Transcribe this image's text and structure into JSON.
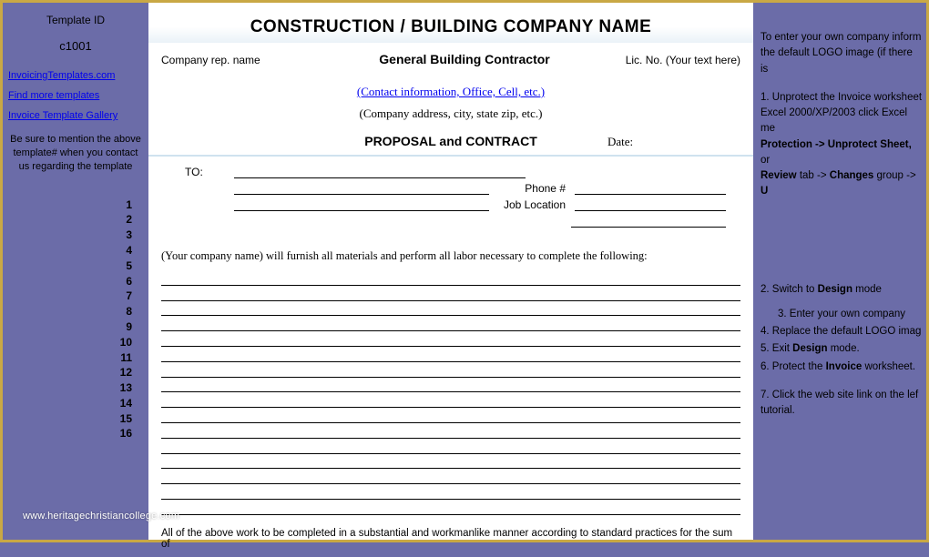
{
  "left": {
    "template_id_label": "Template ID",
    "template_id_value": "c1001",
    "links": [
      "InvoicingTemplates.com",
      "Find more templates",
      "Invoice Template Gallery"
    ],
    "note": "Be sure to mention the above template# when you contact us regarding the template",
    "rows": [
      "1",
      "2",
      "3",
      "4",
      "5",
      "6",
      "7",
      "8",
      "9",
      "10",
      "11",
      "12",
      "13",
      "14",
      "15",
      "16"
    ]
  },
  "doc": {
    "title": "CONSTRUCTION / BUILDING COMPANY NAME",
    "rep_label": "Company rep. name",
    "rep_center": "General Building Contractor",
    "rep_right": "Lic. No. (Your text here)",
    "contact_link": "(Contact information, Office, Cell, etc.)",
    "address": "(Company address, city, state zip, etc.)",
    "proposal": "PROPOSAL and CONTRACT",
    "date_label": "Date:",
    "to_label": "TO:",
    "phone_label": "Phone #",
    "job_label": "Job Location",
    "furnish": "(Your company name) will furnish all materials and perform all labor necessary to complete the following:",
    "line_count": 16,
    "footer": "All of the above work to be completed in a substantial and workmanlike manner according to standard practices for the sum of"
  },
  "right": {
    "intro": "To enter your own company inform the default LOGO image (if there is",
    "step1_a": "1. Unprotect the Invoice worksheet Excel 2000/XP/2003 click Excel me",
    "step1_b": "Protection -> Unprotect Sheet,",
    "step1_c": " or",
    "step1_d": "Review",
    "step1_e": " tab -> ",
    "step1_f": "Changes",
    "step1_g": " group -> ",
    "step1_h": "U",
    "step2": "2. Switch to ",
    "step2b": "Design",
    "step2c": " mode",
    "step3": "3. Enter your own company",
    "step4": "4. Replace the default LOGO imag",
    "step5a": "5. Exit ",
    "step5b": "Design",
    "step5c": " mode.",
    "step6a": "6. Protect the ",
    "step6b": "Invoice",
    "step6c": " worksheet.",
    "step7": "7. Click the web site link on the lef tutorial."
  },
  "watermark": "www.heritagechristiancollege.com",
  "colors": {
    "background": "#6b6ca8",
    "border": "#c9a845",
    "doc_bg": "#ffffff",
    "link": "#0000ee",
    "header_tint": "#eaf2f8"
  }
}
